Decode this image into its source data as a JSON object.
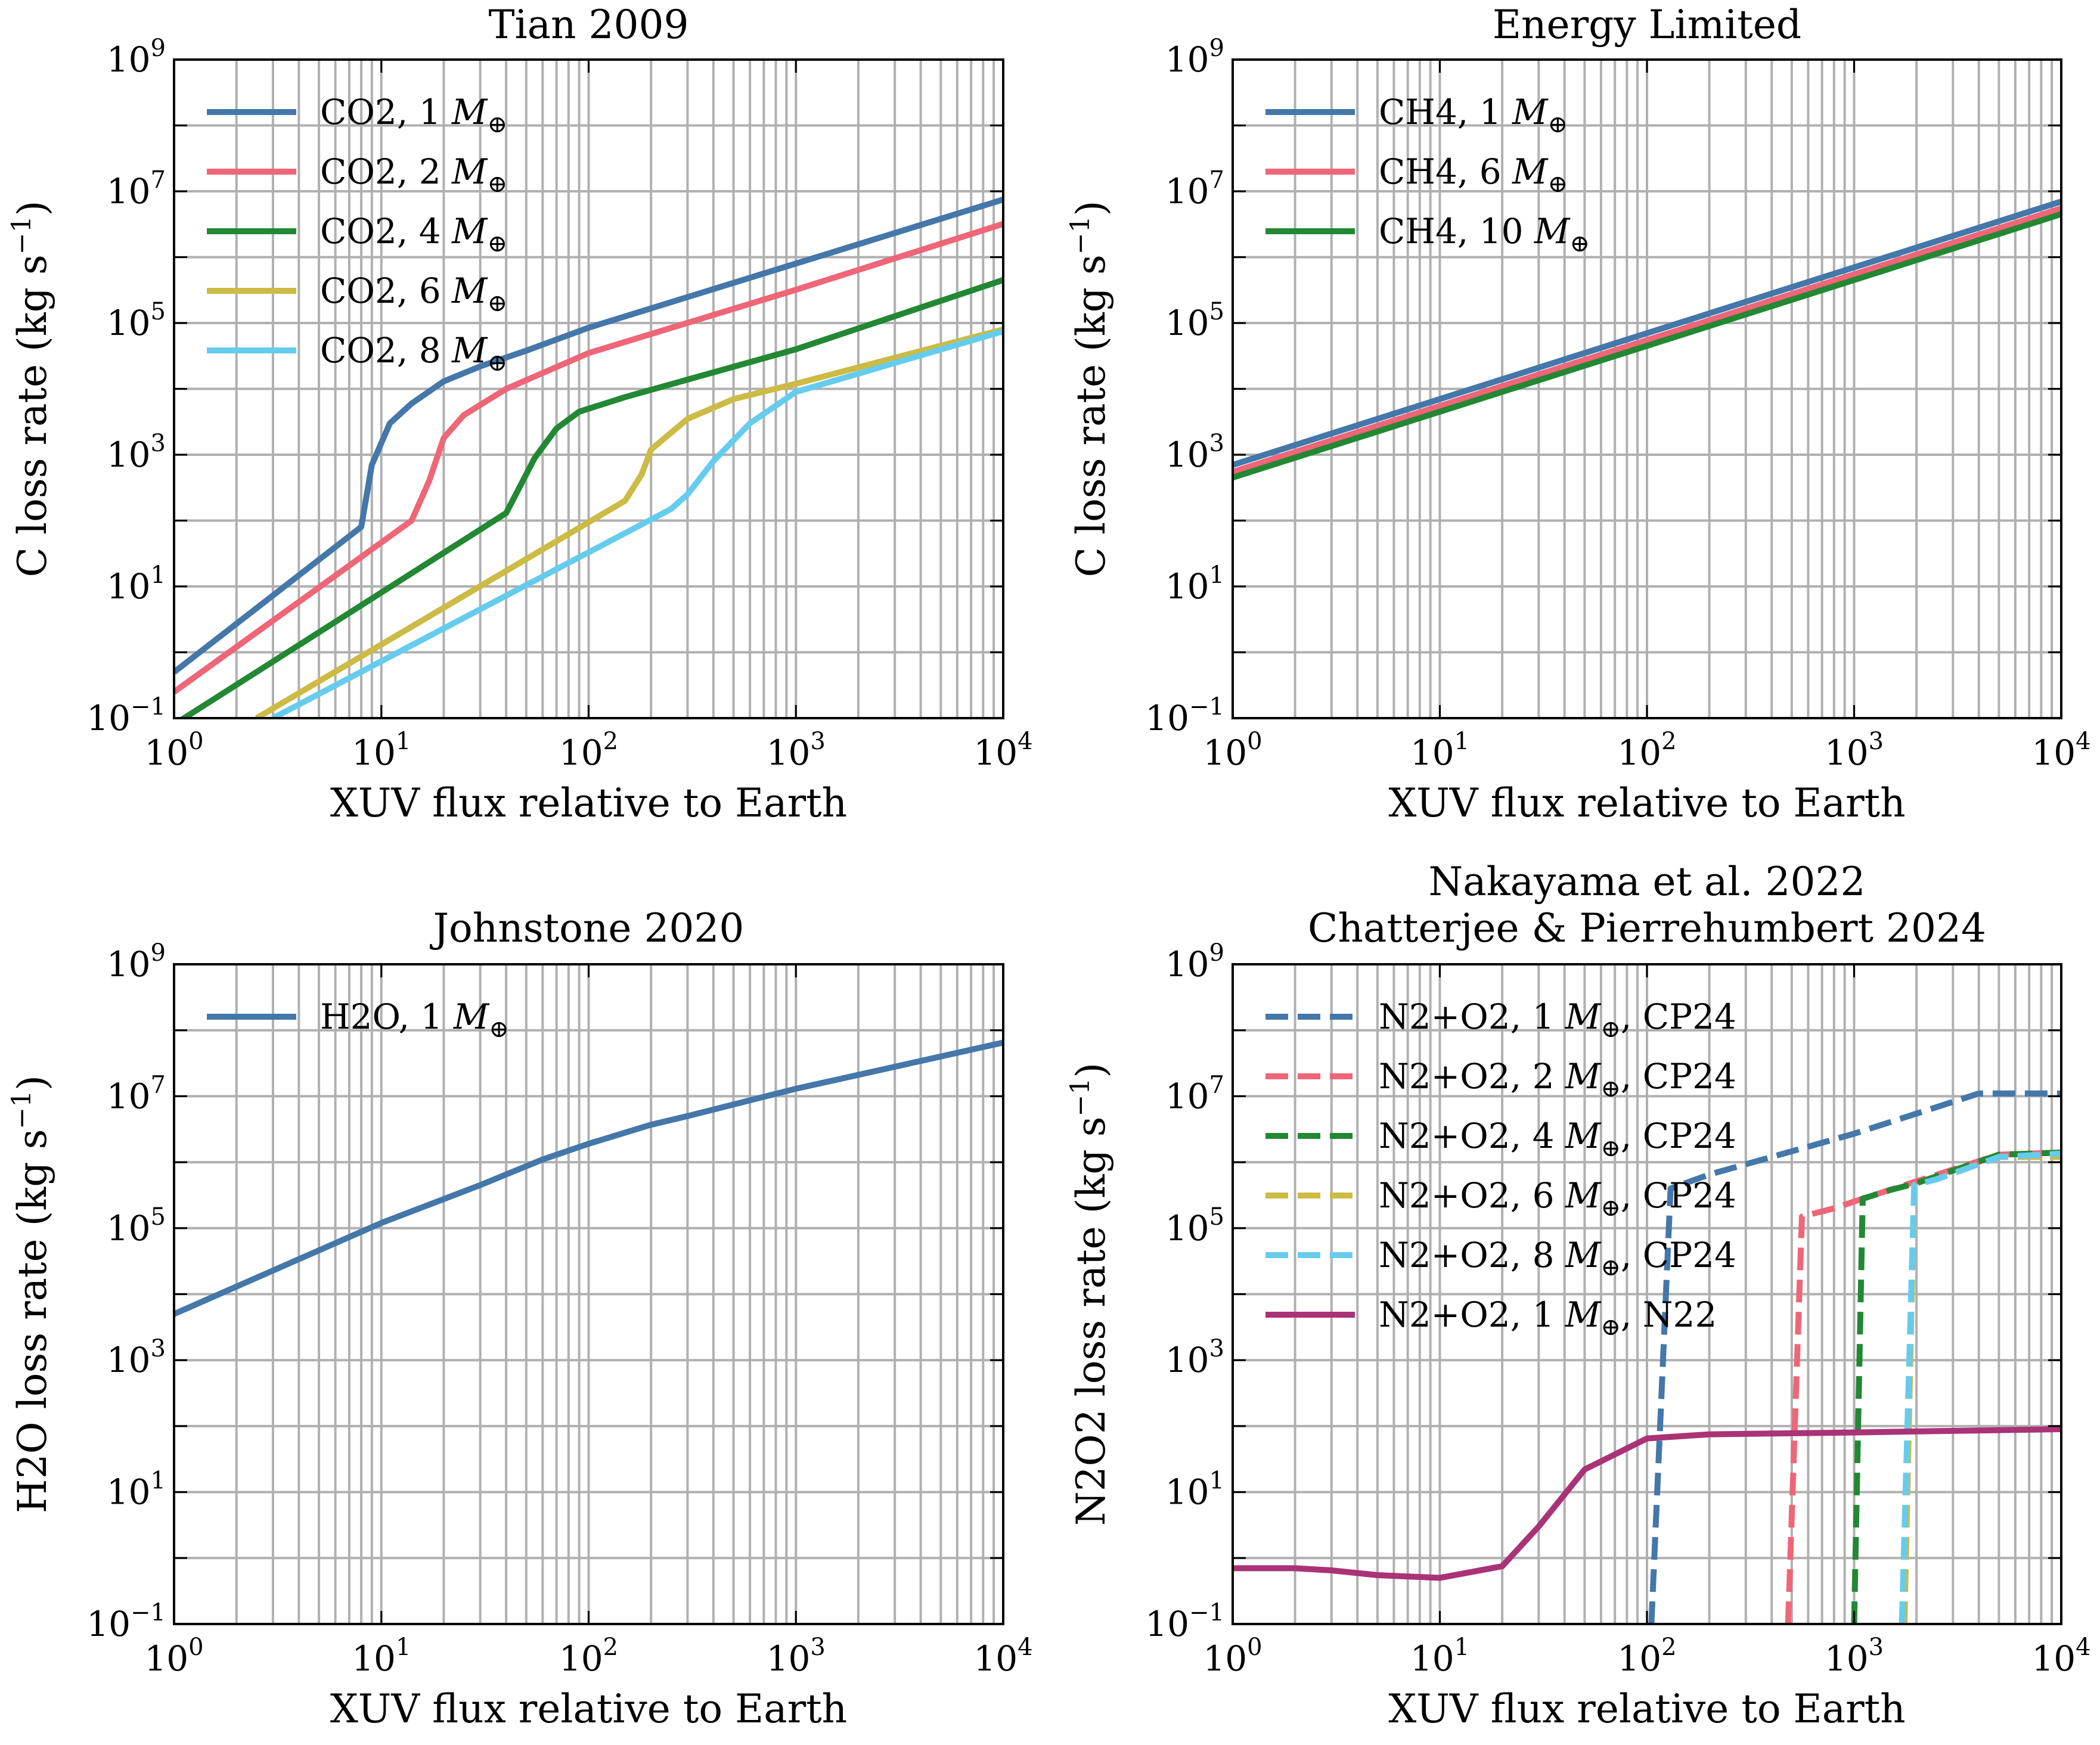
{
  "figure": {
    "xlabel": "XUV flux relative to Earth"
  },
  "chart_data": [
    {
      "type": "line",
      "title": "Tian 2009",
      "xlabel": "XUV flux relative to Earth",
      "ylabel": "C loss rate (kg s",
      "ylabel_sup": "−1",
      "ylabel_end": ")",
      "x_scale": "log",
      "y_scale": "log",
      "xlim": [
        1,
        10000
      ],
      "ylim": [
        0.1,
        1000000000
      ],
      "grid": "both-x-minor",
      "legend_position": "top-left",
      "x_ticks": [
        {
          "b": "10",
          "e": "0"
        },
        {
          "b": "10",
          "e": "1"
        },
        {
          "b": "10",
          "e": "2"
        },
        {
          "b": "10",
          "e": "3"
        },
        {
          "b": "10",
          "e": "4"
        }
      ],
      "y_ticks": [
        {
          "b": "10",
          "e": "−1"
        },
        {
          "b": "10",
          "e": "1"
        },
        {
          "b": "10",
          "e": "3"
        },
        {
          "b": "10",
          "e": "5"
        },
        {
          "b": "10",
          "e": "7"
        },
        {
          "b": "10",
          "e": "9"
        }
      ],
      "series": [
        {
          "name": "CO2, 1 ",
          "mass_symbol": "M",
          "mass_sub": "⊕",
          "name_suffix": "",
          "color": "#4477aa",
          "dashed": false,
          "points": [
            [
              1,
              0.5
            ],
            [
              8,
              80
            ],
            [
              9,
              700
            ],
            [
              11,
              3000
            ],
            [
              14,
              6000
            ],
            [
              20,
              13000
            ],
            [
              30,
              22000
            ],
            [
              50,
              38000
            ],
            [
              100,
              85000
            ],
            [
              1000,
              800000
            ],
            [
              10000,
              7500000
            ]
          ]
        },
        {
          "name": "CO2, 2 ",
          "mass_symbol": "M",
          "mass_sub": "⊕",
          "name_suffix": "",
          "color": "#ee6677",
          "dashed": false,
          "points": [
            [
              1,
              0.25
            ],
            [
              14,
              100
            ],
            [
              17,
              400
            ],
            [
              20,
              1800
            ],
            [
              25,
              4000
            ],
            [
              40,
              10000
            ],
            [
              100,
              35000
            ],
            [
              1000,
              320000
            ],
            [
              10000,
              3200000
            ]
          ]
        },
        {
          "name": "CO2, 4 ",
          "mass_symbol": "M",
          "mass_sub": "⊕",
          "name_suffix": "",
          "color": "#228833",
          "dashed": false,
          "points": [
            [
              1,
              0.08
            ],
            [
              40,
              130
            ],
            [
              55,
              900
            ],
            [
              70,
              2500
            ],
            [
              90,
              4500
            ],
            [
              150,
              7500
            ],
            [
              1000,
              40000
            ],
            [
              10000,
              450000
            ]
          ]
        },
        {
          "name": "CO2, 6 ",
          "mass_symbol": "M",
          "mass_sub": "⊕",
          "name_suffix": "",
          "color": "#ccbb44",
          "dashed": false,
          "points": [
            [
              2.5,
              0.1
            ],
            [
              150,
              200
            ],
            [
              180,
              500
            ],
            [
              200,
              1200
            ],
            [
              300,
              3500
            ],
            [
              500,
              7000
            ],
            [
              1000,
              12000
            ],
            [
              10000,
              80000
            ]
          ]
        },
        {
          "name": "CO2, 8 ",
          "mass_symbol": "M",
          "mass_sub": "⊕",
          "name_suffix": "",
          "color": "#66ccee",
          "dashed": false,
          "points": [
            [
              3,
              0.1
            ],
            [
              250,
              150
            ],
            [
              300,
              250
            ],
            [
              400,
              800
            ],
            [
              600,
              3000
            ],
            [
              1000,
              9000
            ],
            [
              10000,
              75000
            ]
          ]
        }
      ]
    },
    {
      "type": "line",
      "title": "Energy Limited",
      "xlabel": "XUV flux relative to Earth",
      "ylabel": "C loss rate (kg s",
      "ylabel_sup": "−1",
      "ylabel_end": ")",
      "x_scale": "log",
      "y_scale": "log",
      "xlim": [
        1,
        10000
      ],
      "ylim": [
        0.1,
        1000000000
      ],
      "grid": "both-x-minor",
      "legend_position": "top-left",
      "x_ticks": [
        {
          "b": "10",
          "e": "0"
        },
        {
          "b": "10",
          "e": "1"
        },
        {
          "b": "10",
          "e": "2"
        },
        {
          "b": "10",
          "e": "3"
        },
        {
          "b": "10",
          "e": "4"
        }
      ],
      "y_ticks": [
        {
          "b": "10",
          "e": "−1"
        },
        {
          "b": "10",
          "e": "1"
        },
        {
          "b": "10",
          "e": "3"
        },
        {
          "b": "10",
          "e": "5"
        },
        {
          "b": "10",
          "e": "7"
        },
        {
          "b": "10",
          "e": "9"
        }
      ],
      "series": [
        {
          "name": "CH4, 1 ",
          "mass_symbol": "M",
          "mass_sub": "⊕",
          "name_suffix": "",
          "color": "#4477aa",
          "dashed": false,
          "points": [
            [
              1,
              700
            ],
            [
              10000,
              7000000
            ]
          ]
        },
        {
          "name": "CH4, 6 ",
          "mass_symbol": "M",
          "mass_sub": "⊕",
          "name_suffix": "",
          "color": "#ee6677",
          "dashed": false,
          "points": [
            [
              1,
              550
            ],
            [
              10000,
              5500000
            ]
          ]
        },
        {
          "name": "CH4, 10 ",
          "mass_symbol": "M",
          "mass_sub": "⊕",
          "name_suffix": "",
          "color": "#228833",
          "dashed": false,
          "points": [
            [
              1,
              450
            ],
            [
              10000,
              4500000
            ]
          ]
        }
      ]
    },
    {
      "type": "line",
      "title": "Johnstone 2020",
      "xlabel": "XUV flux relative to Earth",
      "ylabel": "H2O loss rate (kg s",
      "ylabel_sup": "−1",
      "ylabel_end": ")",
      "x_scale": "log",
      "y_scale": "log",
      "xlim": [
        1,
        10000
      ],
      "ylim": [
        0.1,
        1000000000
      ],
      "grid": "both-x-minor",
      "legend_position": "top-left",
      "x_ticks": [
        {
          "b": "10",
          "e": "0"
        },
        {
          "b": "10",
          "e": "1"
        },
        {
          "b": "10",
          "e": "2"
        },
        {
          "b": "10",
          "e": "3"
        },
        {
          "b": "10",
          "e": "4"
        }
      ],
      "y_ticks": [
        {
          "b": "10",
          "e": "−1"
        },
        {
          "b": "10",
          "e": "1"
        },
        {
          "b": "10",
          "e": "3"
        },
        {
          "b": "10",
          "e": "5"
        },
        {
          "b": "10",
          "e": "7"
        },
        {
          "b": "10",
          "e": "9"
        }
      ],
      "series": [
        {
          "name": "H2O, 1 ",
          "mass_symbol": "M",
          "mass_sub": "⊕",
          "name_suffix": "",
          "color": "#4477aa",
          "dashed": false,
          "points": [
            [
              1,
              5000
            ],
            [
              10,
              120000
            ],
            [
              30,
              450000
            ],
            [
              60,
              1100000
            ],
            [
              100,
              1900000
            ],
            [
              200,
              3700000
            ],
            [
              300,
              5000000
            ],
            [
              1000,
              13000000
            ],
            [
              10000,
              65000000
            ]
          ]
        }
      ]
    },
    {
      "type": "line",
      "title": "Nakayama et al. 2022",
      "title_line2": "Chatterjee & Pierrehumbert 2024",
      "xlabel": "XUV flux relative to Earth",
      "ylabel": "N2O2 loss rate (kg s",
      "ylabel_sup": "−1",
      "ylabel_end": ")",
      "x_scale": "log",
      "y_scale": "log",
      "xlim": [
        1,
        10000
      ],
      "ylim": [
        0.1,
        1000000000
      ],
      "grid": "both-x-minor",
      "legend_position": "top-left",
      "x_ticks": [
        {
          "b": "10",
          "e": "0"
        },
        {
          "b": "10",
          "e": "1"
        },
        {
          "b": "10",
          "e": "2"
        },
        {
          "b": "10",
          "e": "3"
        },
        {
          "b": "10",
          "e": "4"
        }
      ],
      "y_ticks": [
        {
          "b": "10",
          "e": "−1"
        },
        {
          "b": "10",
          "e": "1"
        },
        {
          "b": "10",
          "e": "3"
        },
        {
          "b": "10",
          "e": "5"
        },
        {
          "b": "10",
          "e": "7"
        },
        {
          "b": "10",
          "e": "9"
        }
      ],
      "series": [
        {
          "name": "N2+O2, 1 ",
          "mass_symbol": "M",
          "mass_sub": "⊕",
          "name_suffix": ", CP24",
          "color": "#4477aa",
          "dashed": true,
          "points": [
            [
              105,
              0.1
            ],
            [
              130,
              400000
            ],
            [
              200,
              650000
            ],
            [
              1000,
              2700000
            ],
            [
              4000,
              11000000
            ],
            [
              10000,
              11000000
            ]
          ]
        },
        {
          "name": "N2+O2, 2 ",
          "mass_symbol": "M",
          "mass_sub": "⊕",
          "name_suffix": ", CP24",
          "color": "#ee6677",
          "dashed": true,
          "points": [
            [
              480,
              0.1
            ],
            [
              560,
              150000
            ],
            [
              800,
              200000
            ],
            [
              1100,
              280000
            ],
            [
              5000,
              1300000
            ],
            [
              10000,
              1400000
            ]
          ]
        },
        {
          "name": "N2+O2, 4 ",
          "mass_symbol": "M",
          "mass_sub": "⊕",
          "name_suffix": ", CP24",
          "color": "#228833",
          "dashed": true,
          "points": [
            [
              1000,
              0.1
            ],
            [
              1100,
              280000
            ],
            [
              1500,
              380000
            ],
            [
              2000,
              480000
            ],
            [
              5000,
              1300000
            ],
            [
              10000,
              1400000
            ]
          ]
        },
        {
          "name": "N2+O2, 6 ",
          "mass_symbol": "M",
          "mass_sub": "⊕",
          "name_suffix": ", CP24",
          "color": "#ccbb44",
          "dashed": true,
          "points": [
            [
              1750,
              0.1
            ],
            [
              1950,
              450000
            ],
            [
              2500,
              550000
            ],
            [
              5000,
              1200000
            ],
            [
              10000,
              1200000
            ]
          ]
        },
        {
          "name": "N2+O2, 8 ",
          "mass_symbol": "M",
          "mass_sub": "⊕",
          "name_suffix": ", CP24",
          "color": "#66ccee",
          "dashed": true,
          "points": [
            [
              1700,
              0.1
            ],
            [
              1950,
              450000
            ],
            [
              2500,
              550000
            ],
            [
              5000,
              1200000
            ],
            [
              10000,
              1350000
            ]
          ]
        },
        {
          "name": "N2+O2, 1 ",
          "mass_symbol": "M",
          "mass_sub": "⊕",
          "name_suffix": ", N22",
          "color": "#aa3377",
          "dashed": false,
          "points": [
            [
              1,
              0.7
            ],
            [
              2,
              0.7
            ],
            [
              3,
              0.65
            ],
            [
              5,
              0.55
            ],
            [
              10,
              0.5
            ],
            [
              20,
              0.75
            ],
            [
              30,
              3
            ],
            [
              50,
              22
            ],
            [
              100,
              65
            ],
            [
              200,
              75
            ],
            [
              1000,
              80
            ],
            [
              10000,
              90
            ]
          ]
        }
      ]
    }
  ]
}
